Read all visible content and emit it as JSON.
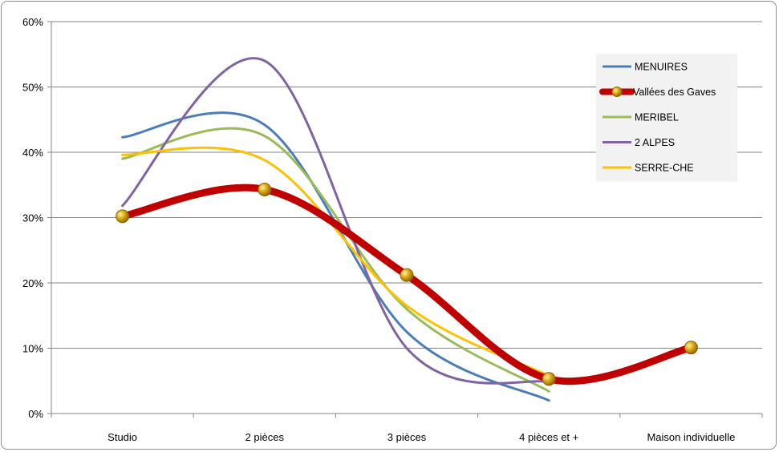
{
  "chart_data": {
    "type": "line",
    "smooth": true,
    "categories": [
      "Studio",
      "2 pièces",
      "3 pièces",
      "4 pièces et +",
      "Maison individuelle"
    ],
    "ylim": [
      0,
      60
    ],
    "y_ticks": [
      0,
      10,
      20,
      30,
      40,
      50,
      60
    ],
    "y_tick_labels": [
      "0%",
      "10%",
      "20%",
      "30%",
      "40%",
      "50%",
      "60%"
    ],
    "grid": "horizontal",
    "legend_position": "top-right",
    "title": "",
    "xlabel": "",
    "ylabel": "",
    "series": [
      {
        "name": "MENUIRES",
        "color": "#4a7ebb",
        "values": [
          42.3,
          44.2,
          12.5,
          2.0,
          null
        ],
        "markers": false,
        "width": "thin"
      },
      {
        "name": "MERIBEL",
        "color": "#9bbb59",
        "values": [
          39.0,
          42.5,
          16.0,
          3.4,
          null
        ],
        "markers": false,
        "width": "thin"
      },
      {
        "name": "2 ALPES",
        "color": "#8064a2",
        "values": [
          31.8,
          54.0,
          10.0,
          4.8,
          null
        ],
        "markers": false,
        "width": "thin"
      },
      {
        "name": "SERRE-CHE",
        "color": "#ffc000",
        "values": [
          39.6,
          38.8,
          16.5,
          5.8,
          null
        ],
        "markers": false,
        "width": "thin"
      },
      {
        "name": "Vallées des Gaves",
        "color": "#c00000",
        "values": [
          30.2,
          34.3,
          21.2,
          5.3,
          10.1
        ],
        "markers": true,
        "marker_color": "#d9a21b",
        "width": "thick"
      }
    ],
    "legend_order": [
      "MENUIRES",
      "Vallées des Gaves",
      "MERIBEL",
      "2 ALPES",
      "SERRE-CHE"
    ]
  }
}
